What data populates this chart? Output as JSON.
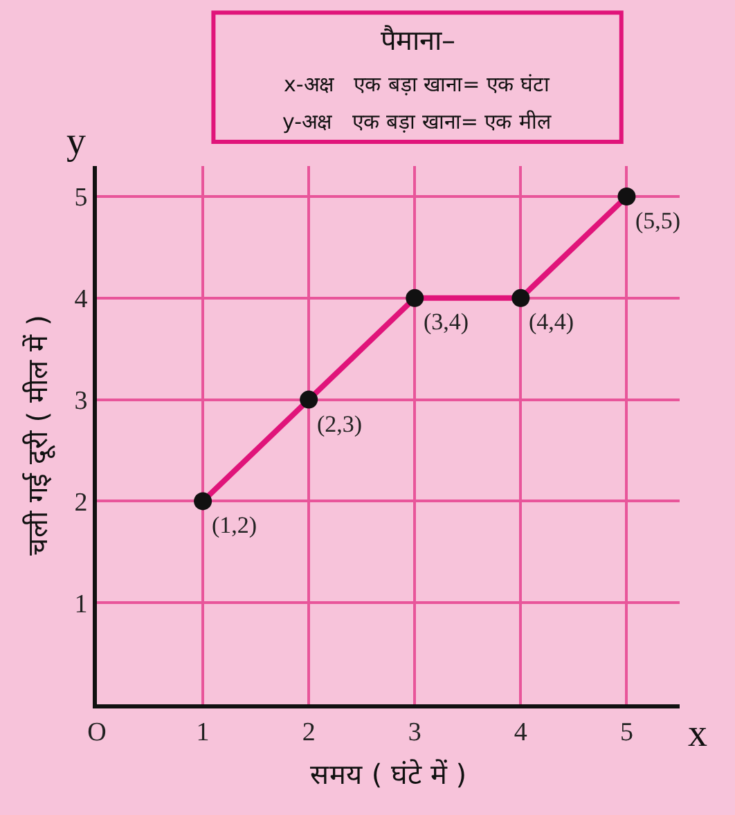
{
  "chart_data": {
    "type": "line",
    "xlabel": "समय ( घंटे में )",
    "ylabel": "चली गई दूरी ( मील में )",
    "x": [
      1,
      2,
      3,
      4,
      5
    ],
    "series": [
      {
        "color": "#e0147a",
        "values": [
          2,
          3,
          4,
          4,
          5
        ]
      }
    ],
    "xlim": [
      0,
      5.5
    ],
    "ylim": [
      0,
      5.3
    ],
    "xticks": [
      {
        "value": 0,
        "label": "O"
      },
      1,
      2,
      3,
      4,
      5
    ],
    "yticks": [
      1,
      2,
      3,
      4,
      5
    ],
    "grid": true,
    "marker": "circle",
    "line_style": "solid",
    "annotations": [
      "पैमाना–",
      "x-अक्ष   एक बड़ा खाना= एक घंटा",
      "y-अक्ष   एक बड़ा खाना= एक मील",
      "x",
      "y",
      {
        "text": "(1,2)",
        "x": 1,
        "y": 2
      },
      {
        "text": "(2,3)",
        "x": 2,
        "y": 3
      },
      {
        "text": "(3,4)",
        "x": 3,
        "y": 4
      },
      {
        "text": "(4,4)",
        "x": 4,
        "y": 4
      },
      {
        "text": "(5,5)",
        "x": 5,
        "y": 5
      }
    ]
  }
}
